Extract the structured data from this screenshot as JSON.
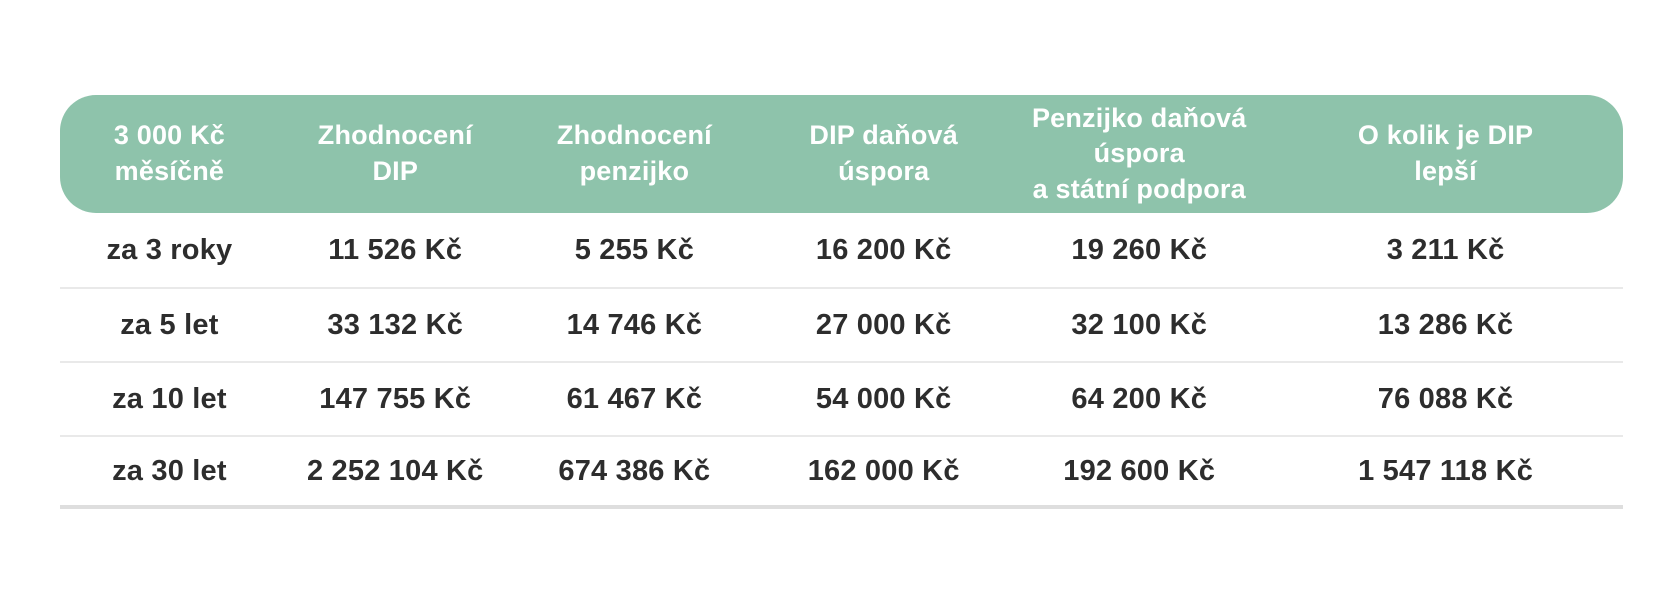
{
  "chart_data": {
    "type": "table",
    "title": "",
    "columns": [
      "3 000 Kč měsíčně",
      "Zhodnocení DIP",
      "Zhodnocení penzijko",
      "DIP daňová úspora",
      "Penzijko daňová úspora a státní podpora",
      "O kolik je DIP lepší"
    ],
    "columns_display": [
      "3 000 Kč\nměsíčně",
      "Zhodnocení\nDIP",
      "Zhodnocení\npenzijko",
      "DIP daňová\núspora",
      "Penzijko daňová úspora\na státní podpora",
      "O kolik je DIP\nlepší"
    ],
    "rows": [
      [
        "za 3 roky",
        "11 526 Kč",
        "5 255 Kč",
        "16 200 Kč",
        "19 260 Kč",
        "3 211 Kč"
      ],
      [
        "za 5 let",
        "33 132 Kč",
        "14 746 Kč",
        "27 000 Kč",
        "32 100 Kč",
        "13 286 Kč"
      ],
      [
        "za 10 let",
        "147 755 Kč",
        "61 467 Kč",
        "54 000 Kč",
        "64 200 Kč",
        "76 088 Kč"
      ],
      [
        "za 30 let",
        "2 252 104 Kč",
        "674 386 Kč",
        "162 000 Kč",
        "192 600 Kč",
        "1 547 118 Kč"
      ]
    ],
    "colors": {
      "header_background": "#8ec3ab",
      "header_text": "#ffffff",
      "body_text": "#2d2d2d",
      "row_separator": "#e9e9e9",
      "bottom_rule": "#dedede"
    },
    "layout_hints": {
      "header_corner_radius_px": 36,
      "grid": "horizontal separators only"
    }
  }
}
